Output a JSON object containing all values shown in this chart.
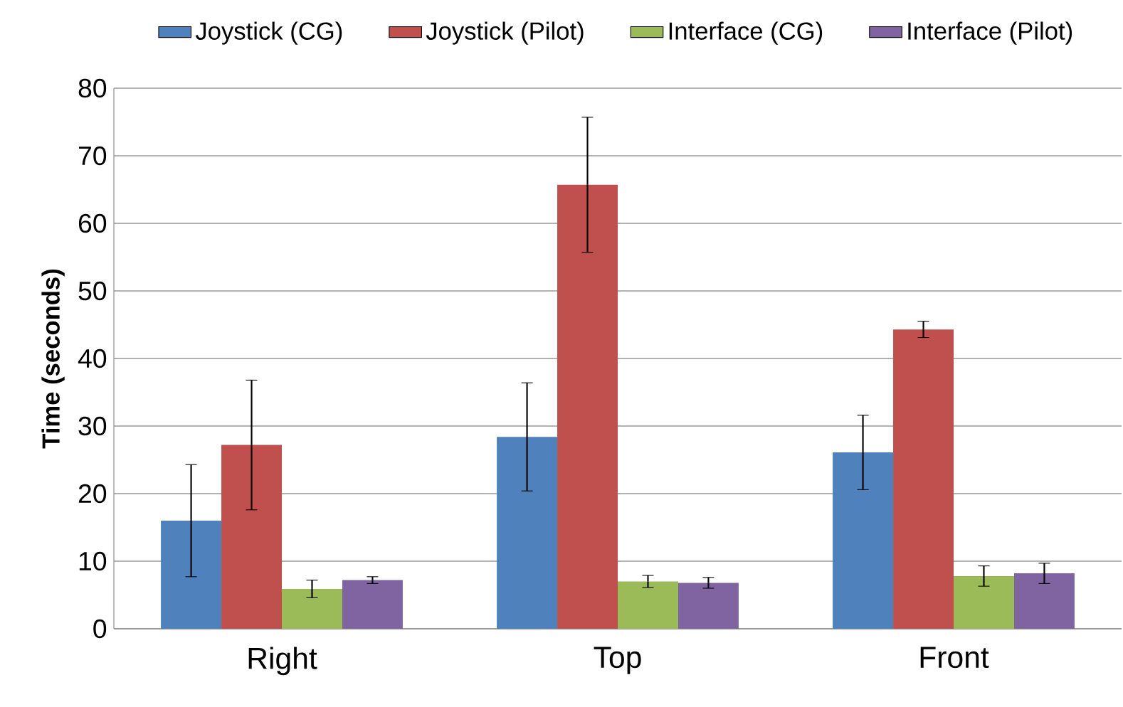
{
  "chart_data": {
    "type": "bar",
    "ylabel": "Time (seconds)",
    "categories": [
      "Right",
      "Top",
      "Front"
    ],
    "series": [
      {
        "name": "Joystick (CG)",
        "color": "#4f81bd",
        "values": [
          16.0,
          28.4,
          26.1
        ],
        "errors": [
          8.3,
          8.0,
          5.5
        ]
      },
      {
        "name": "Joystick (Pilot)",
        "color": "#c0504d",
        "values": [
          27.2,
          65.7,
          44.3
        ],
        "errors": [
          9.6,
          10.0,
          1.2
        ]
      },
      {
        "name": "Interface (CG)",
        "color": "#9bbb59",
        "values": [
          5.9,
          7.0,
          7.8
        ],
        "errors": [
          1.3,
          0.9,
          1.5
        ]
      },
      {
        "name": "Interface (Pilot)",
        "color": "#8064a2",
        "values": [
          7.2,
          6.8,
          8.2
        ],
        "errors": [
          0.5,
          0.8,
          1.5
        ]
      }
    ],
    "ylim": [
      0,
      80
    ],
    "yticks": [
      0,
      10,
      20,
      30,
      40,
      50,
      60,
      70,
      80
    ],
    "grid": "y",
    "legend": "top"
  }
}
